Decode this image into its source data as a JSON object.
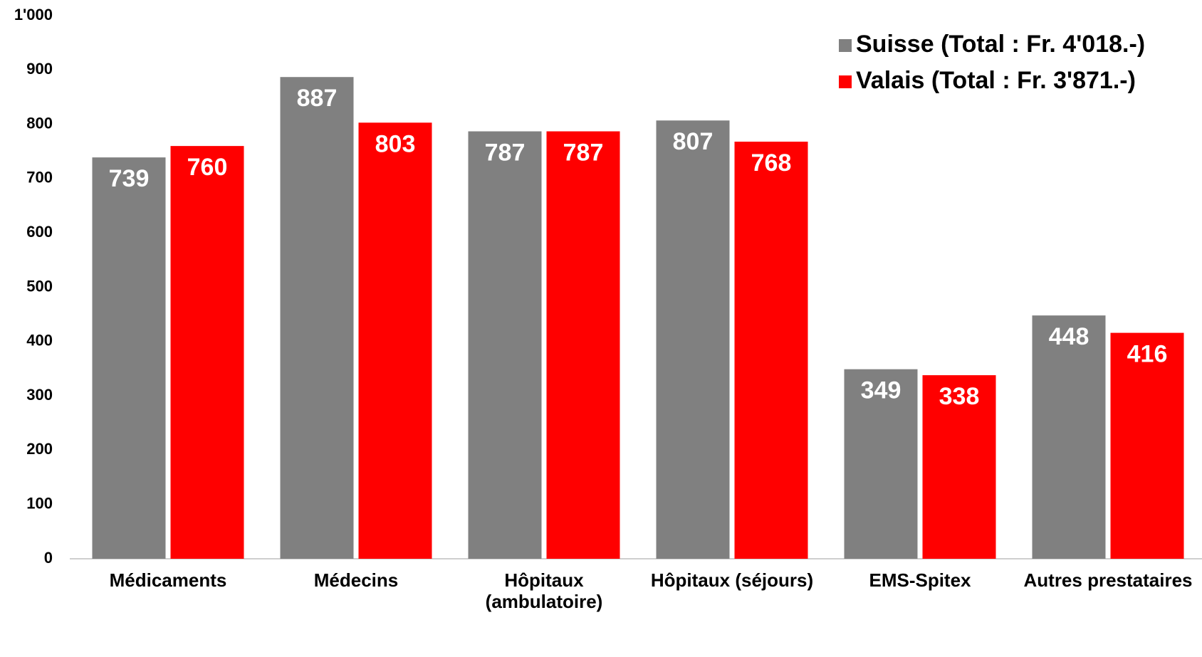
{
  "chart_data": {
    "type": "bar",
    "categories": [
      "Médicaments",
      "Médecins",
      "Hôpitaux (ambulatoire)",
      "Hôpitaux (séjours)",
      "EMS-Spitex",
      "Autres prestataires"
    ],
    "series": [
      {
        "name": "Suisse (Total : Fr. 4'018.-)",
        "color": "#808080",
        "values": [
          739,
          887,
          787,
          807,
          349,
          448
        ]
      },
      {
        "name": "Valais (Total : Fr. 3'871.-)",
        "color": "#ff0000",
        "values": [
          760,
          803,
          787,
          768,
          338,
          416
        ]
      }
    ],
    "ylim": [
      0,
      1000
    ],
    "yticks": [
      0,
      100,
      200,
      300,
      400,
      500,
      600,
      700,
      800,
      900,
      {
        "value": 1000,
        "label": "1'000"
      }
    ],
    "grid": false,
    "legend": "top-right"
  }
}
